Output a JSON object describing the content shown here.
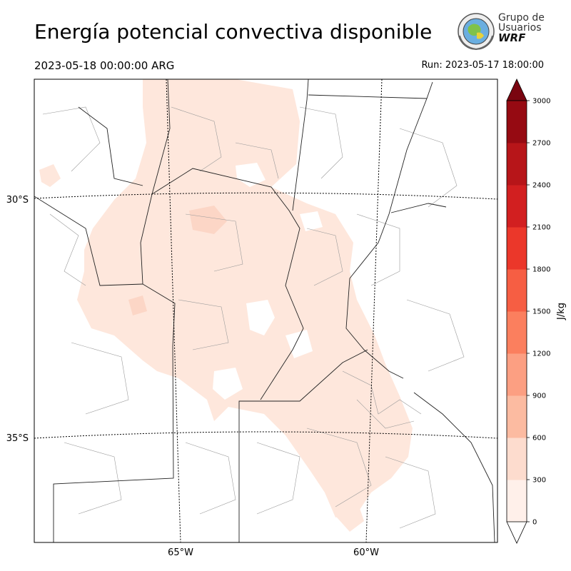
{
  "header": {
    "title": "Energía potencial convectiva disponible",
    "valid_time": "2023-05-18 00:00:00 ARG",
    "run_time": "Run: 2023-05-17 18:00:00"
  },
  "logo": {
    "line1": "Grupo de",
    "line2": "Usuarios",
    "line3": "WRF"
  },
  "map": {
    "lat_labels": [
      "30°S",
      "35°S"
    ],
    "lon_labels": [
      "65°W",
      "60°W"
    ],
    "fill_color": "#fee7dc"
  },
  "colorbar": {
    "label": "J/kg",
    "ticks": [
      "0",
      "300",
      "600",
      "900",
      "1200",
      "1500",
      "1800",
      "2100",
      "2400",
      "2700",
      "3000"
    ],
    "colors": [
      "#fff0ea",
      "#fddcce",
      "#fcbba1",
      "#fc9f82",
      "#fb7f5e",
      "#f65e43",
      "#eb372a",
      "#d21f20",
      "#b71519",
      "#960a12",
      "#7a0510"
    ]
  }
}
